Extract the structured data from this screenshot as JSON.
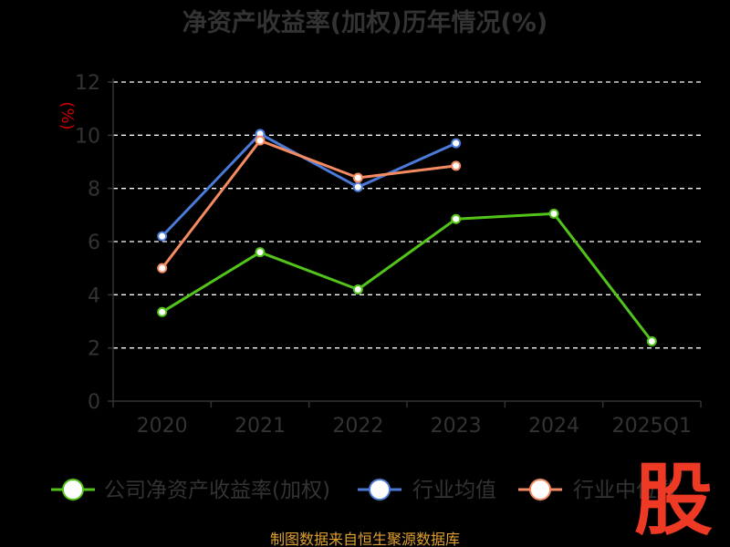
{
  "chart_data": {
    "type": "line",
    "title": "净资产收益率(加权)历年情况(%)",
    "unit_label": "(%)",
    "categories": [
      "2020",
      "2021",
      "2022",
      "2023",
      "2024",
      "2025Q1"
    ],
    "ylim": [
      0,
      12
    ],
    "yticks": [
      "0",
      "2",
      "4",
      "6",
      "8",
      "10",
      "12"
    ],
    "grid": true,
    "legend_position": "bottom",
    "series": [
      {
        "name": "公司净资产收益率(加权)",
        "color": "#52c41a",
        "values": [
          3.35,
          5.6,
          4.2,
          6.85,
          7.05,
          2.25
        ]
      },
      {
        "name": "行业均值",
        "color": "#4b7bd9",
        "values": [
          6.2,
          10.05,
          8.05,
          9.7,
          null,
          null
        ]
      },
      {
        "name": "行业中位数",
        "color": "#f58b60",
        "values": [
          5.0,
          9.8,
          8.4,
          8.85,
          null,
          null
        ]
      }
    ]
  },
  "footer": {
    "source": "制图数据来自恒生聚源数据库"
  },
  "watermark": {
    "text": "股"
  }
}
